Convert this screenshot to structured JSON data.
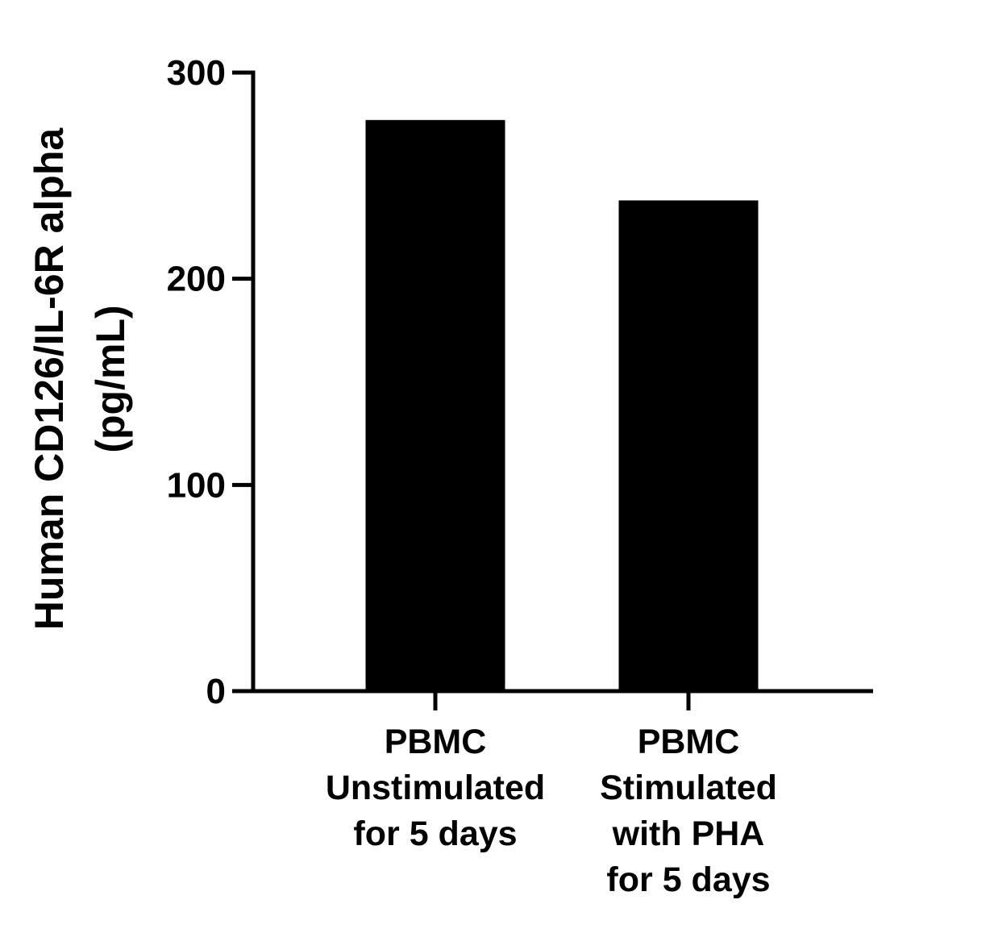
{
  "chart_data": {
    "type": "bar",
    "title": "",
    "xlabel": "",
    "ylabel_lines": [
      "Human CD126/IL-6R alpha",
      "(pg/mL)"
    ],
    "categories": [
      [
        "PBMC",
        "Unstimulated",
        "for 5 days"
      ],
      [
        "PBMC",
        "Stimulated",
        "with PHA",
        "for 5 days"
      ]
    ],
    "values": [
      277,
      238
    ],
    "ylim": [
      0,
      300
    ],
    "yticks": [
      "0",
      "100",
      "200",
      "300"
    ],
    "grid": false,
    "bar_color": "#000000",
    "axis_color": "#000000"
  }
}
